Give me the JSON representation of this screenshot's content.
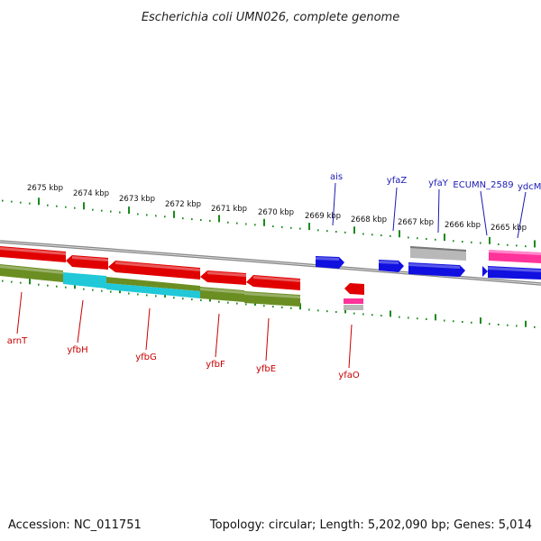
{
  "title": "Escherichia coli UMN026, complete genome",
  "footer": {
    "accession": "Accession: NC_011751",
    "summary": "Topology: circular; Length: 5,202,090 bp; Genes: 5,014"
  },
  "colors": {
    "forward_gene": "#1010e0",
    "reverse_gene": "#e00000",
    "cog_olive": "#6b8e23",
    "cog_cyan": "#20c8d8",
    "pink": "#ff3399",
    "grey": "#b8b8b8",
    "tick": "#1a8a1a",
    "backbone": "#888888",
    "top_label": "#1a1ab4",
    "bottom_label": "#c80000"
  },
  "scale_labels": [
    "2675 kbp",
    "2674 kbp",
    "2673 kbp",
    "2672 kbp",
    "2671 kbp",
    "2670 kbp",
    "2669 kbp",
    "2668 kbp",
    "2667 kbp",
    "2666 kbp",
    "2665 kbp"
  ],
  "top_genes": [
    "ais",
    "yfaZ",
    "yfaY",
    "ECUMN_2589",
    "ydcM"
  ],
  "bottom_genes": [
    "arnT",
    "yfbH",
    "yfbG",
    "yfbF",
    "yfbE",
    "yfaO"
  ]
}
